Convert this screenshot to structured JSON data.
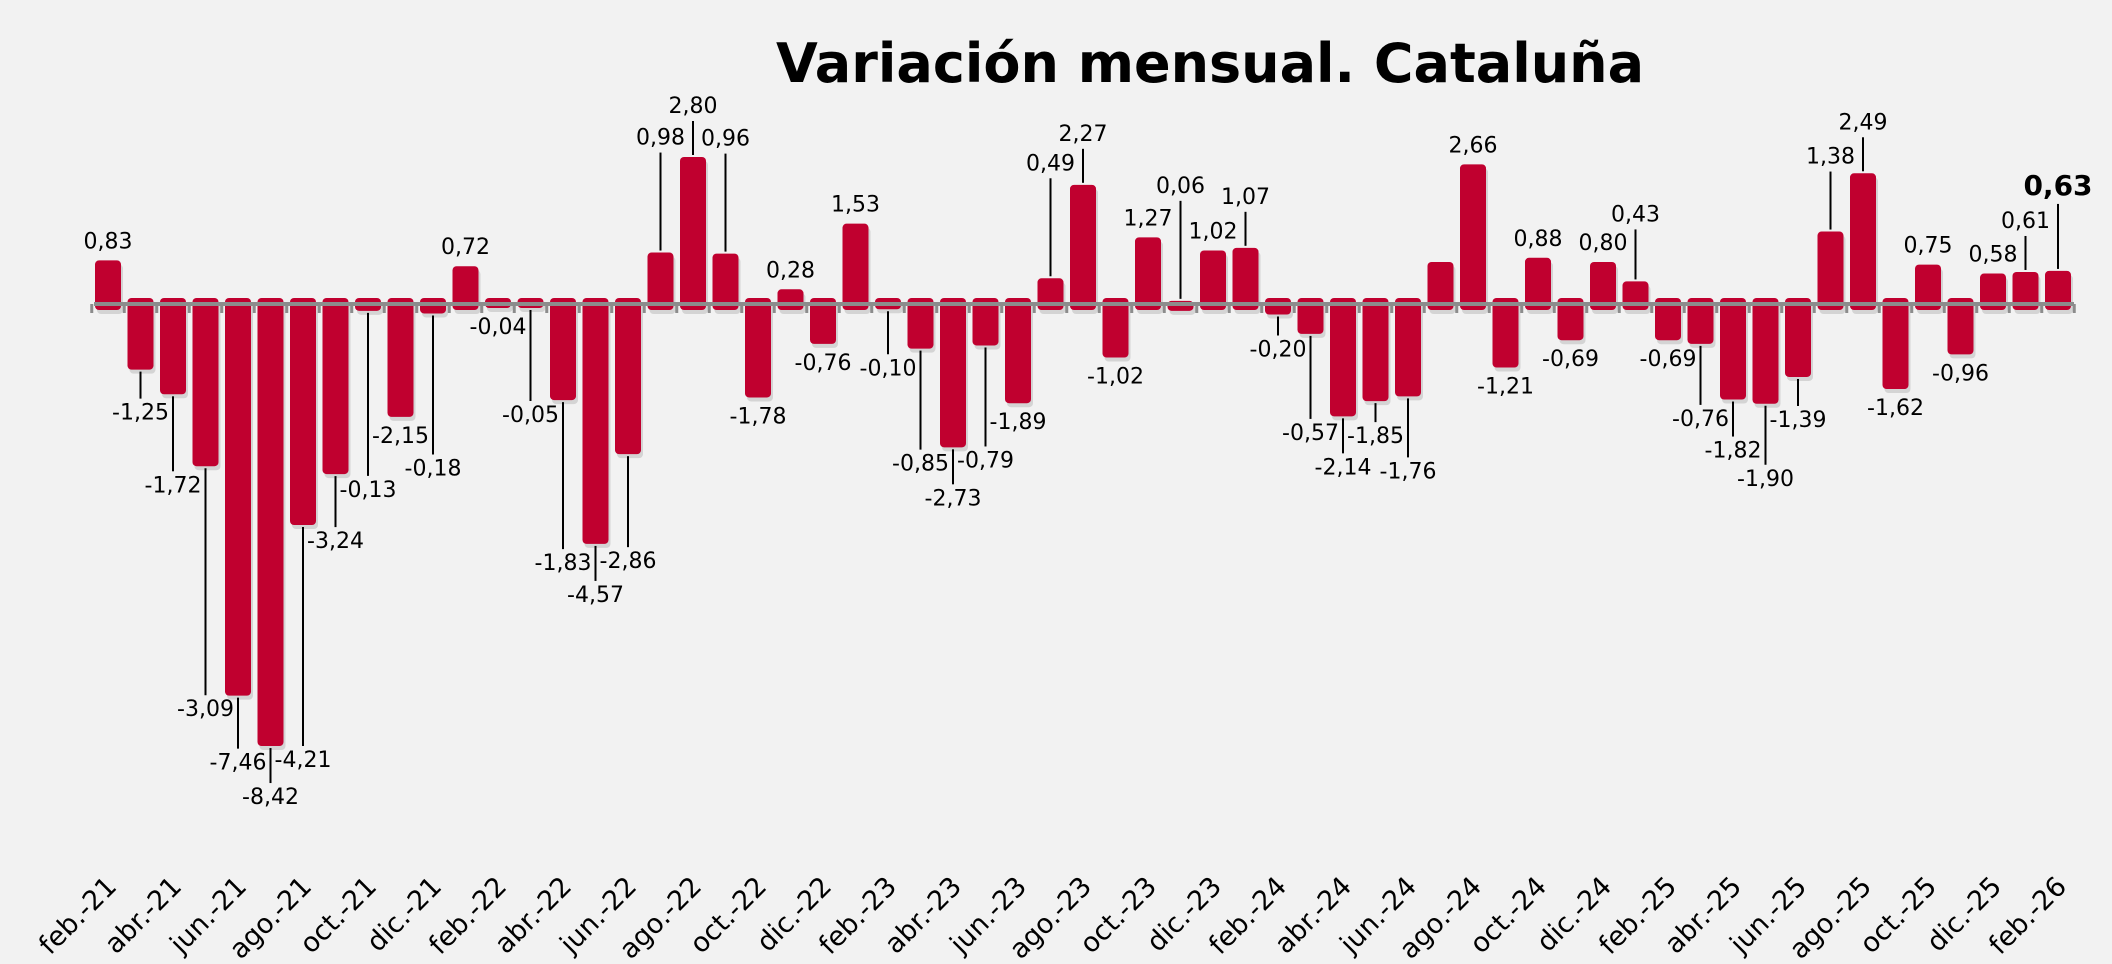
{
  "chart_data": {
    "type": "bar",
    "title": "Variación mensual. Cataluña",
    "xlabel": "",
    "ylabel": "",
    "grid": false,
    "legend": "none",
    "bar_color": "#c0002f",
    "axis_color": "#8c8c8c",
    "background": "#f2f2f2",
    "ylim": [
      -9,
      3.2
    ],
    "categories": [
      "feb.-21",
      "mar.-21",
      "abr.-21",
      "may.-21",
      "jun.-21",
      "jul.-21",
      "ago.-21",
      "sep.-21",
      "oct.-21",
      "nov.-21",
      "dic.-21",
      "ene.-22",
      "feb.-22",
      "mar.-22",
      "abr.-22",
      "may.-22",
      "jun.-22",
      "jul.-22",
      "ago.-22",
      "sep.-22",
      "oct.-22",
      "nov.-22",
      "dic.-22",
      "ene.-23",
      "feb.-23",
      "mar.-23",
      "abr.-23",
      "may.-23",
      "jun.-23",
      "jul.-23",
      "ago.-23",
      "sep.-23",
      "oct.-23",
      "nov.-23",
      "dic.-23",
      "ene.-24",
      "feb.-24",
      "mar.-24",
      "abr.-24",
      "may.-24",
      "jun.-24",
      "jul.-24",
      "ago.-24",
      "sep.-24",
      "oct.-24",
      "nov.-24",
      "dic.-24",
      "ene.-25",
      "feb.-25",
      "mar.-25",
      "abr.-25",
      "may.-25",
      "jun.-25",
      "jul.-25",
      "ago.-25",
      "sep.-25",
      "oct.-25",
      "nov.-25",
      "dic.-25",
      "ene.-26",
      "feb.-26"
    ],
    "tick_labels": [
      "feb.-21",
      "abr.-21",
      "jun.-21",
      "ago.-21",
      "oct.-21",
      "dic.-21",
      "feb.-22",
      "abr.-22",
      "jun.-22",
      "ago.-22",
      "oct.-22",
      "dic.-22",
      "feb.-23",
      "abr.-23",
      "jun.-23",
      "ago.-23",
      "oct.-23",
      "dic.-23",
      "feb.-24",
      "abr.-24",
      "jun.-24",
      "ago.-24",
      "oct.-24",
      "dic.-24",
      "feb.-25",
      "abr.-25",
      "jun.-25",
      "ago.-25",
      "oct.-25",
      "dic.-25",
      "feb.-26"
    ],
    "values": [
      0.83,
      -1.25,
      -1.72,
      -3.09,
      -7.46,
      -8.42,
      -4.21,
      -3.24,
      -0.13,
      -2.15,
      -0.18,
      0.72,
      -0.04,
      -0.05,
      -1.83,
      -4.57,
      -2.86,
      0.98,
      2.8,
      0.96,
      -1.78,
      0.28,
      -0.76,
      1.53,
      -0.1,
      -0.85,
      -2.73,
      -0.79,
      -1.89,
      0.49,
      2.27,
      -1.02,
      1.27,
      0.06,
      1.02,
      1.07,
      -0.2,
      -0.57,
      -2.14,
      -1.85,
      -1.76,
      0.8,
      2.66,
      -1.21,
      0.88,
      -0.69,
      0.8,
      0.43,
      -0.69,
      -0.76,
      -1.82,
      -1.9,
      -1.39,
      1.38,
      2.49,
      -1.62,
      0.75,
      -0.96,
      0.58,
      0.61,
      0.63
    ],
    "data_labels": [
      "0,83",
      "-1,25",
      "-1,72",
      "-3,09",
      "-7,46",
      "-8,42",
      "-4,21",
      "-3,24",
      "-0,13",
      "-2,15",
      "-0,18",
      "0,72",
      "-0,04",
      "-0,05",
      "-1,83",
      "-4,57",
      "-2,86",
      "0,98",
      "2,80",
      "0,96",
      "-1,78",
      "0,28",
      "-0,76",
      "1,53",
      "-0,10",
      "-0,85",
      "-2,73",
      "-0,79",
      "-1,89",
      "0,49",
      "2,27",
      "-1,02",
      "1,27",
      "0,06",
      "1,02",
      "1,07",
      "-0,20",
      "-0,57",
      "-2,14",
      "-1,85",
      "-1,76",
      "",
      "2,66",
      "-1,21",
      "0,88",
      "-0,69",
      "0,80",
      "0,43",
      "-0,69",
      "-0,76",
      "-1,82",
      "-1,90",
      "-1,39",
      "1,38",
      "2,49",
      "-1,62",
      "0,75",
      "-0,96",
      "0,58",
      "0,61",
      "0,63"
    ],
    "highlighted_label": "0,63"
  }
}
